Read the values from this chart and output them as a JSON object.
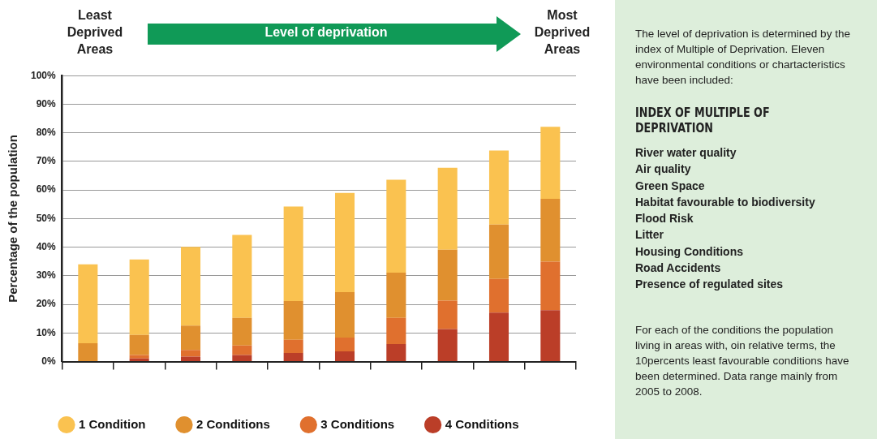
{
  "chart_data": {
    "type": "bar",
    "stacked": true,
    "ylabel": "Percentage of the population",
    "categories": [
      null,
      null,
      null,
      null,
      null,
      null,
      null,
      null,
      null,
      null
    ],
    "series": [
      {
        "name": "4 Conditions",
        "color": "#bb3e28",
        "values": [
          0,
          1.1,
          1.7,
          2.3,
          3.0,
          3.6,
          6.1,
          11.4,
          17.1,
          18.0
        ]
      },
      {
        "name": "3 Conditions",
        "color": "#e0702e",
        "values": [
          0,
          1.2,
          2.4,
          3.3,
          4.6,
          4.8,
          9.2,
          9.9,
          11.8,
          16.9
        ]
      },
      {
        "name": "2 Conditions",
        "color": "#e0902f",
        "values": [
          6.4,
          7.0,
          8.5,
          9.7,
          13.6,
          15.9,
          15.8,
          17.8,
          19.0,
          22.0
        ]
      },
      {
        "name": "1 Condition",
        "color": "#fac250",
        "values": [
          27.6,
          26.4,
          27.5,
          29.0,
          33.0,
          34.7,
          32.5,
          28.7,
          25.9,
          25.2
        ]
      }
    ],
    "ylim": [
      0,
      100
    ],
    "yticks": [
      {
        "value": 0,
        "label": "0%"
      },
      {
        "value": 10,
        "label": "10%"
      },
      {
        "value": 20,
        "label": "20%"
      },
      {
        "value": 30,
        "label": "30%"
      },
      {
        "value": 40,
        "label": "40%"
      },
      {
        "value": 50,
        "label": "50%"
      },
      {
        "value": 60,
        "label": "60%"
      },
      {
        "value": 70,
        "label": "70%"
      },
      {
        "value": 80,
        "label": "80%"
      },
      {
        "value": 90,
        "label": "90%"
      },
      {
        "value": 100,
        "label": "100%"
      }
    ],
    "grid": "y",
    "legend": "bottom",
    "annotations": [
      "Least Deprived Areas",
      "Level of deprivation",
      "Most Deprived Areas",
      "The level of deprivation is determined by the index of Multiple of Deprivation. Eleven environmental conditions or chartacteristics have been included:",
      "INDEX OF MULTIPLE OF DEPRIVATION",
      "River water quality",
      "Air quality",
      "Green Space",
      "Habitat favourable to biodiversity",
      "Flood Risk",
      "Litter",
      "Housing Conditions",
      "Road Accidents",
      "Presence of regulated sites",
      "For each of the conditions the population living in areas with, oin relative terms, the 10percents least favourable conditions have been determined. Data range mainly from 2005 to 2008."
    ]
  }
}
